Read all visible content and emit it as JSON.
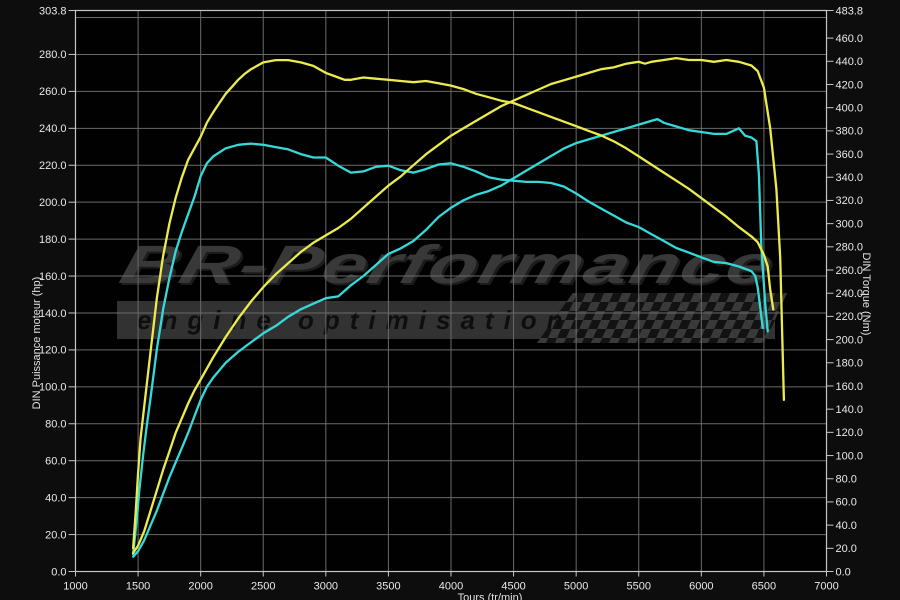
{
  "watermark": {
    "brand": "BR-Performance",
    "tagline": "engine optimisation"
  },
  "colors": {
    "background": "#0d0d0d",
    "plot_background": "#010101",
    "gridline": "#6a6a6a",
    "border": "#c6c6c6",
    "tick_label": "#e8e8e8",
    "tuned_curve": "#ebeb4e",
    "stock_curve": "#35d9d9",
    "watermark_gray": "#383838"
  },
  "chart_data": {
    "type": "line",
    "title": "",
    "legend": "none",
    "grid": {
      "on": true,
      "h_step": 20,
      "v_step": 500
    },
    "x_axis": {
      "label": "Tours (tr/min)",
      "label_note": "clipped at bottom edge of screenshot",
      "min": 1000,
      "max": 7000,
      "ticks": [
        1000,
        1500,
        2000,
        2500,
        3000,
        3500,
        4000,
        4500,
        5000,
        5500,
        6000,
        6500,
        7000
      ]
    },
    "y_left": {
      "label": "DIN Puissance moteur (hp)",
      "min": 0,
      "max": 303.8,
      "ticks": [
        0,
        20,
        40,
        60,
        80,
        100,
        120,
        140,
        160,
        180,
        200,
        220,
        240,
        260,
        280,
        303.8
      ]
    },
    "y_right": {
      "label": "DIN Torque (Nm)",
      "min": 0,
      "max": 483.8,
      "ticks": [
        0,
        20,
        40,
        60,
        80,
        100,
        120,
        140,
        160,
        180,
        200,
        220,
        240,
        260,
        280,
        300,
        320,
        340,
        360,
        380,
        400,
        420,
        440,
        460,
        483.8
      ]
    },
    "series": [
      {
        "name": "torque-stock",
        "unit": "Nm",
        "axis": "right",
        "color": "#35d9d9",
        "points": [
          [
            1460,
            15
          ],
          [
            1490,
            45
          ],
          [
            1510,
            70
          ],
          [
            1540,
            100
          ],
          [
            1570,
            126
          ],
          [
            1600,
            150
          ],
          [
            1650,
            192
          ],
          [
            1700,
            226
          ],
          [
            1750,
            253
          ],
          [
            1800,
            276
          ],
          [
            1850,
            293
          ],
          [
            1900,
            308
          ],
          [
            1950,
            323
          ],
          [
            2000,
            341
          ],
          [
            2050,
            352
          ],
          [
            2100,
            358
          ],
          [
            2200,
            365
          ],
          [
            2300,
            368
          ],
          [
            2400,
            369
          ],
          [
            2500,
            368
          ],
          [
            2600,
            366
          ],
          [
            2700,
            364
          ],
          [
            2800,
            360
          ],
          [
            2900,
            357
          ],
          [
            3000,
            357
          ],
          [
            3100,
            350
          ],
          [
            3200,
            344
          ],
          [
            3300,
            345
          ],
          [
            3400,
            349
          ],
          [
            3500,
            350
          ],
          [
            3600,
            346
          ],
          [
            3700,
            344
          ],
          [
            3800,
            347
          ],
          [
            3900,
            351
          ],
          [
            4000,
            352
          ],
          [
            4100,
            349
          ],
          [
            4200,
            345
          ],
          [
            4300,
            340
          ],
          [
            4400,
            338
          ],
          [
            4500,
            337
          ],
          [
            4600,
            336
          ],
          [
            4700,
            336
          ],
          [
            4800,
            335
          ],
          [
            4900,
            332
          ],
          [
            5000,
            326
          ],
          [
            5100,
            319
          ],
          [
            5200,
            313
          ],
          [
            5300,
            307
          ],
          [
            5400,
            301
          ],
          [
            5500,
            297
          ],
          [
            5600,
            291
          ],
          [
            5700,
            285
          ],
          [
            5800,
            279
          ],
          [
            5900,
            275
          ],
          [
            6000,
            271
          ],
          [
            6100,
            267
          ],
          [
            6200,
            266
          ],
          [
            6300,
            263
          ],
          [
            6400,
            259
          ],
          [
            6430,
            255
          ],
          [
            6450,
            245
          ],
          [
            6470,
            228
          ],
          [
            6490,
            210
          ]
        ]
      },
      {
        "name": "power-stock",
        "unit": "hp",
        "axis": "left",
        "color": "#35d9d9",
        "points": [
          [
            1460,
            8
          ],
          [
            1500,
            11
          ],
          [
            1550,
            17
          ],
          [
            1600,
            25
          ],
          [
            1650,
            33
          ],
          [
            1700,
            42
          ],
          [
            1750,
            51
          ],
          [
            1800,
            59
          ],
          [
            1850,
            67
          ],
          [
            1900,
            75
          ],
          [
            1950,
            84
          ],
          [
            2000,
            93
          ],
          [
            2050,
            100
          ],
          [
            2100,
            105
          ],
          [
            2200,
            113
          ],
          [
            2300,
            119
          ],
          [
            2400,
            124
          ],
          [
            2500,
            129
          ],
          [
            2600,
            133
          ],
          [
            2700,
            138
          ],
          [
            2800,
            142
          ],
          [
            2900,
            145
          ],
          [
            3000,
            148
          ],
          [
            3100,
            149
          ],
          [
            3200,
            155
          ],
          [
            3300,
            160
          ],
          [
            3400,
            166
          ],
          [
            3500,
            172
          ],
          [
            3600,
            175
          ],
          [
            3700,
            179
          ],
          [
            3800,
            185
          ],
          [
            3900,
            192
          ],
          [
            4000,
            197
          ],
          [
            4100,
            201
          ],
          [
            4200,
            204
          ],
          [
            4300,
            206
          ],
          [
            4400,
            209
          ],
          [
            4500,
            213
          ],
          [
            4600,
            217
          ],
          [
            4700,
            221
          ],
          [
            4800,
            225
          ],
          [
            4900,
            229
          ],
          [
            5000,
            232
          ],
          [
            5100,
            234
          ],
          [
            5200,
            236
          ],
          [
            5300,
            238
          ],
          [
            5400,
            240
          ],
          [
            5500,
            242
          ],
          [
            5600,
            244
          ],
          [
            5650,
            245
          ],
          [
            5700,
            243
          ],
          [
            5800,
            241
          ],
          [
            5900,
            239
          ],
          [
            6000,
            238
          ],
          [
            6100,
            237
          ],
          [
            6200,
            237
          ],
          [
            6300,
            240
          ],
          [
            6350,
            236
          ],
          [
            6400,
            235
          ],
          [
            6440,
            233
          ],
          [
            6460,
            215
          ],
          [
            6480,
            175
          ],
          [
            6510,
            145
          ],
          [
            6530,
            130
          ]
        ]
      },
      {
        "name": "torque-tuned",
        "unit": "Nm",
        "axis": "right",
        "color": "#ebeb4e",
        "points": [
          [
            1460,
            20
          ],
          [
            1480,
            50
          ],
          [
            1500,
            85
          ],
          [
            1520,
            115
          ],
          [
            1550,
            143
          ],
          [
            1600,
            190
          ],
          [
            1650,
            236
          ],
          [
            1700,
            272
          ],
          [
            1750,
            300
          ],
          [
            1800,
            322
          ],
          [
            1850,
            340
          ],
          [
            1900,
            355
          ],
          [
            1950,
            365
          ],
          [
            2000,
            375
          ],
          [
            2050,
            387
          ],
          [
            2100,
            396
          ],
          [
            2150,
            404
          ],
          [
            2200,
            412
          ],
          [
            2250,
            418
          ],
          [
            2300,
            424
          ],
          [
            2350,
            429
          ],
          [
            2400,
            433
          ],
          [
            2450,
            436
          ],
          [
            2500,
            439
          ],
          [
            2600,
            441
          ],
          [
            2700,
            441
          ],
          [
            2800,
            439
          ],
          [
            2900,
            436
          ],
          [
            3000,
            430
          ],
          [
            3100,
            426
          ],
          [
            3150,
            424
          ],
          [
            3200,
            424
          ],
          [
            3300,
            426
          ],
          [
            3400,
            425
          ],
          [
            3500,
            424
          ],
          [
            3600,
            423
          ],
          [
            3700,
            422
          ],
          [
            3800,
            423
          ],
          [
            3900,
            421
          ],
          [
            4000,
            419
          ],
          [
            4100,
            416
          ],
          [
            4200,
            412
          ],
          [
            4300,
            409
          ],
          [
            4400,
            406
          ],
          [
            4500,
            404
          ],
          [
            4600,
            400
          ],
          [
            4700,
            396
          ],
          [
            4800,
            392
          ],
          [
            4900,
            388
          ],
          [
            5000,
            384
          ],
          [
            5100,
            380
          ],
          [
            5200,
            376
          ],
          [
            5300,
            371
          ],
          [
            5400,
            365
          ],
          [
            5500,
            358
          ],
          [
            5600,
            351
          ],
          [
            5700,
            344
          ],
          [
            5800,
            337
          ],
          [
            5900,
            330
          ],
          [
            6000,
            322
          ],
          [
            6100,
            314
          ],
          [
            6200,
            306
          ],
          [
            6300,
            297
          ],
          [
            6400,
            289
          ],
          [
            6450,
            284
          ],
          [
            6500,
            273
          ],
          [
            6530,
            263
          ],
          [
            6550,
            243
          ],
          [
            6575,
            226
          ]
        ]
      },
      {
        "name": "power-tuned",
        "unit": "hp",
        "axis": "left",
        "color": "#ebeb4e",
        "points": [
          [
            1460,
            10
          ],
          [
            1500,
            14
          ],
          [
            1550,
            22
          ],
          [
            1600,
            33
          ],
          [
            1650,
            44
          ],
          [
            1700,
            55
          ],
          [
            1750,
            65
          ],
          [
            1800,
            75
          ],
          [
            1850,
            83
          ],
          [
            1900,
            91
          ],
          [
            1950,
            98
          ],
          [
            2000,
            104
          ],
          [
            2100,
            116
          ],
          [
            2200,
            127
          ],
          [
            2300,
            137
          ],
          [
            2400,
            146
          ],
          [
            2500,
            154
          ],
          [
            2600,
            161
          ],
          [
            2700,
            167
          ],
          [
            2800,
            173
          ],
          [
            2900,
            178
          ],
          [
            3000,
            182
          ],
          [
            3100,
            186
          ],
          [
            3200,
            191
          ],
          [
            3300,
            197
          ],
          [
            3400,
            203
          ],
          [
            3500,
            209
          ],
          [
            3600,
            214
          ],
          [
            3700,
            220
          ],
          [
            3800,
            226
          ],
          [
            3900,
            231
          ],
          [
            4000,
            236
          ],
          [
            4100,
            240
          ],
          [
            4200,
            244
          ],
          [
            4300,
            248
          ],
          [
            4400,
            252
          ],
          [
            4500,
            255
          ],
          [
            4600,
            258
          ],
          [
            4700,
            261
          ],
          [
            4800,
            264
          ],
          [
            4900,
            266
          ],
          [
            5000,
            268
          ],
          [
            5100,
            270
          ],
          [
            5200,
            272
          ],
          [
            5300,
            273
          ],
          [
            5400,
            275
          ],
          [
            5500,
            276
          ],
          [
            5550,
            275
          ],
          [
            5600,
            276
          ],
          [
            5700,
            277
          ],
          [
            5800,
            278
          ],
          [
            5900,
            277
          ],
          [
            6000,
            277
          ],
          [
            6100,
            276
          ],
          [
            6200,
            277
          ],
          [
            6300,
            276
          ],
          [
            6400,
            274
          ],
          [
            6450,
            271
          ],
          [
            6500,
            262
          ],
          [
            6550,
            240
          ],
          [
            6600,
            207
          ],
          [
            6630,
            170
          ],
          [
            6660,
            93
          ]
        ]
      }
    ]
  }
}
